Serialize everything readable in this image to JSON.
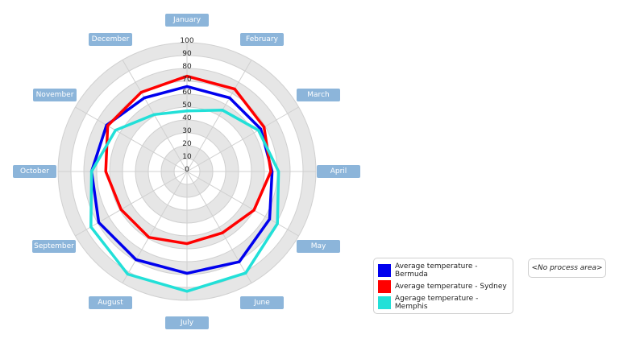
{
  "chart_data": {
    "type": "radar",
    "title": "",
    "categories": [
      "January",
      "February",
      "March",
      "April",
      "May",
      "June",
      "July",
      "August",
      "September",
      "October",
      "November",
      "December"
    ],
    "radial_ticks": [
      0,
      10,
      20,
      30,
      40,
      50,
      60,
      70,
      80,
      90,
      100
    ],
    "rlim": [
      0,
      100
    ],
    "grid": true,
    "legend_position": "bottom-right",
    "series": [
      {
        "name": "Average temperature - Bermuda",
        "color": "#0000ee",
        "values": [
          66,
          66,
          66,
          66,
          74,
          81,
          79,
          79,
          79,
          74,
          72,
          66
        ]
      },
      {
        "name": "Average temperature - Sydney",
        "color": "#ff0000",
        "values": [
          74,
          74,
          69,
          65,
          60,
          55,
          56,
          59,
          59,
          63,
          71,
          71
        ]
      },
      {
        "name": "Agerage temperature - Memphis",
        "color": "#22e0d8",
        "values": [
          47,
          55,
          64,
          71,
          81,
          91,
          93,
          92,
          86,
          74,
          64,
          51
        ]
      }
    ]
  },
  "legend": {
    "items": [
      {
        "label": "Average temperature - Bermuda",
        "color": "#0000ee"
      },
      {
        "label": "Average temperature - Sydney",
        "color": "#ff0000"
      },
      {
        "label": "Agerage temperature - Memphis",
        "color": "#22e0d8"
      }
    ]
  },
  "no_process_area": "<No process area>",
  "colors": {
    "label_bg": "#8cb5da",
    "band_gray": "#e6e6e6",
    "grid_line": "#d0d0d0"
  }
}
